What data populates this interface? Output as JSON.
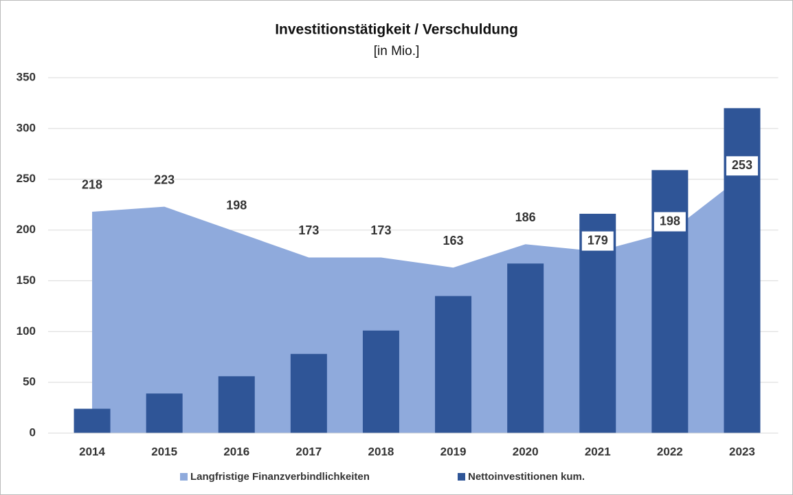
{
  "chart_data": {
    "type": "bar",
    "title": "Investitionstätigkeit / Verschuldung",
    "subtitle": "[in Mio.]",
    "categories": [
      "2014",
      "2015",
      "2016",
      "2017",
      "2018",
      "2019",
      "2020",
      "2021",
      "2022",
      "2023"
    ],
    "series": [
      {
        "name": "Langfristige Finanzverbindlichkeiten",
        "type": "area",
        "color": "#8faadc",
        "values": [
          218,
          223,
          198,
          173,
          173,
          163,
          186,
          179,
          198,
          253
        ],
        "labels": true
      },
      {
        "name": "Nettoinvestitionen kum.",
        "type": "bar",
        "color": "#2f5597",
        "values": [
          24,
          39,
          56,
          78,
          101,
          135,
          167,
          216,
          259,
          320
        ],
        "labels": false
      }
    ],
    "ylim": [
      0,
      350
    ],
    "yticks": [
      0,
      50,
      100,
      150,
      200,
      250,
      300,
      350
    ],
    "grid": true,
    "legend": "bottom"
  }
}
